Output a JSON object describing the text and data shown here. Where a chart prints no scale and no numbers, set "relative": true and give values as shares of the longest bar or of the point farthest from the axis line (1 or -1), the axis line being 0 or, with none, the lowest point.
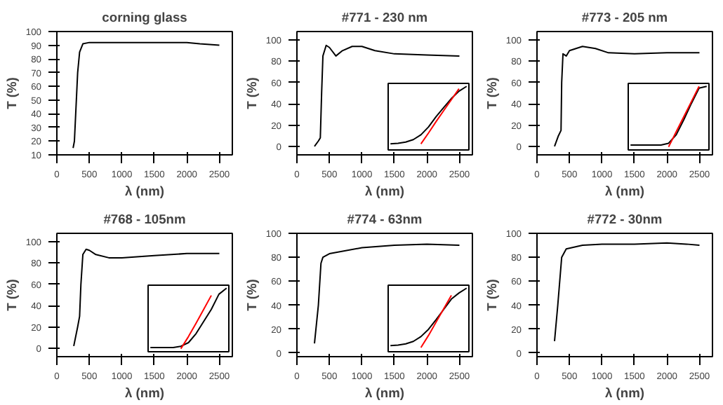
{
  "chart_data": [
    {
      "type": "line",
      "title": "corning glass",
      "xlabel": "λ (nm)",
      "ylabel": "T (%)",
      "xlim": [
        0,
        2700
      ],
      "ylim": [
        10,
        100
      ],
      "xticks": [
        0,
        500,
        1000,
        1500,
        2000,
        2500
      ],
      "yticks": [
        10,
        20,
        30,
        40,
        50,
        60,
        70,
        80,
        90,
        100
      ],
      "grid": false,
      "series": [
        {
          "color": "#000000",
          "x": [
            250,
            270,
            290,
            320,
            350,
            400,
            500,
            1000,
            1500,
            2000,
            2200,
            2500
          ],
          "values": [
            15,
            20,
            40,
            70,
            85,
            91,
            92,
            92,
            92,
            92,
            91,
            90
          ]
        }
      ]
    },
    {
      "type": "line",
      "title": "#771 - 230 nm",
      "xlabel": "λ (nm)",
      "ylabel": "T (%)",
      "xlim": [
        0,
        2700
      ],
      "ylim": [
        -8,
        108
      ],
      "xticks": [
        0,
        500,
        1000,
        1500,
        2000,
        2500
      ],
      "yticks": [
        0,
        20,
        40,
        60,
        80,
        100
      ],
      "grid": false,
      "series": [
        {
          "color": "#000000",
          "x": [
            270,
            330,
            360,
            380,
            400,
            450,
            500,
            600,
            700,
            850,
            1000,
            1200,
            1500,
            2000,
            2500
          ],
          "values": [
            0,
            5,
            8,
            50,
            85,
            95,
            93,
            85,
            90,
            94,
            94,
            90,
            87,
            86,
            85
          ]
        }
      ]
    },
    {
      "type": "line",
      "title": "#773 - 205 nm",
      "xlabel": "λ (nm)",
      "ylabel": "T (%)",
      "xlim": [
        0,
        2700
      ],
      "ylim": [
        -8,
        108
      ],
      "xticks": [
        0,
        500,
        1000,
        1500,
        2000,
        2500
      ],
      "yticks": [
        0,
        20,
        40,
        60,
        80,
        100
      ],
      "grid": false,
      "series": [
        {
          "color": "#000000",
          "x": [
            270,
            330,
            370,
            380,
            400,
            450,
            500,
            700,
            900,
            1100,
            1500,
            2000,
            2500
          ],
          "values": [
            0,
            10,
            15,
            60,
            87,
            85,
            90,
            94,
            92,
            88,
            87,
            88,
            88
          ]
        }
      ]
    },
    {
      "type": "line",
      "title": "#768 - 105nm",
      "xlabel": "λ (nm)",
      "ylabel": "T (%)",
      "xlim": [
        0,
        2700
      ],
      "ylim": [
        -8,
        108
      ],
      "xticks": [
        0,
        500,
        1000,
        1500,
        2000,
        2500
      ],
      "yticks": [
        0,
        20,
        40,
        60,
        80,
        100
      ],
      "grid": false,
      "series": [
        {
          "color": "#000000",
          "x": [
            260,
            320,
            350,
            370,
            400,
            450,
            500,
            600,
            800,
            1000,
            1500,
            2000,
            2500
          ],
          "values": [
            2,
            20,
            30,
            60,
            88,
            93,
            92,
            88,
            85,
            85,
            87,
            89,
            89
          ]
        }
      ]
    },
    {
      "type": "line",
      "title": "#774 - 63nm",
      "xlabel": "λ (nm)",
      "ylabel": "T (%)",
      "xlim": [
        0,
        2700
      ],
      "ylim": [
        -3,
        100
      ],
      "xticks": [
        0,
        500,
        1000,
        1500,
        2000,
        2500
      ],
      "yticks": [
        0,
        20,
        40,
        60,
        80,
        100
      ],
      "grid": false,
      "series": [
        {
          "color": "#000000",
          "x": [
            270,
            330,
            370,
            400,
            500,
            1000,
            1500,
            2000,
            2500
          ],
          "values": [
            8,
            40,
            75,
            80,
            83,
            88,
            90,
            91,
            90
          ]
        }
      ]
    },
    {
      "type": "line",
      "title": "#772 - 30nm",
      "xlabel": "λ (nm)",
      "ylabel": "T (%)",
      "xlim": [
        0,
        2700
      ],
      "ylim": [
        -3,
        100
      ],
      "xticks": [
        0,
        500,
        1000,
        1500,
        2000,
        2500
      ],
      "yticks": [
        0,
        20,
        40,
        60,
        80,
        100
      ],
      "grid": false,
      "series": [
        {
          "color": "#000000",
          "x": [
            270,
            320,
            380,
            450,
            700,
            1000,
            1500,
            2000,
            2300,
            2500
          ],
          "values": [
            10,
            40,
            80,
            87,
            90,
            91,
            91,
            92,
            91,
            90
          ]
        }
      ]
    },
    {
      "type": "line",
      "relative": true,
      "categories": [
        null,
        null,
        null,
        null,
        null,
        null,
        null,
        null,
        null,
        null,
        null
      ],
      "series": [
        {
          "color": "#000000",
          "values": [
            0.05,
            0.06,
            0.08,
            0.12,
            0.2,
            0.33,
            0.5,
            0.65,
            0.8,
            0.92,
            1.0
          ]
        },
        {
          "color": "#ff0000",
          "values": [
            null,
            null,
            null,
            null,
            0.05,
            0.23,
            0.42,
            0.6,
            0.78,
            0.96,
            null
          ]
        }
      ]
    },
    {
      "type": "line",
      "relative": true,
      "categories": [
        null,
        null,
        null,
        null,
        null,
        null,
        null,
        null,
        null,
        null,
        null
      ],
      "series": [
        {
          "color": "#000000",
          "values": [
            0.03,
            0.03,
            0.03,
            0.03,
            0.03,
            0.06,
            0.2,
            0.45,
            0.72,
            0.97,
            1.0
          ]
        },
        {
          "color": "#ff0000",
          "values": [
            null,
            null,
            null,
            null,
            null,
            0.0,
            0.25,
            0.5,
            0.75,
            1.0,
            null
          ]
        }
      ]
    },
    {
      "type": "line",
      "relative": true,
      "categories": [
        null,
        null,
        null,
        null,
        null,
        null,
        null,
        null,
        null,
        null,
        null
      ],
      "series": [
        {
          "color": "#000000",
          "values": [
            0.02,
            0.02,
            0.02,
            0.02,
            0.04,
            0.1,
            0.25,
            0.45,
            0.65,
            0.9,
            1.0
          ]
        },
        {
          "color": "#ff0000",
          "values": [
            null,
            null,
            null,
            null,
            0.0,
            0.2,
            0.42,
            0.65,
            0.88,
            null,
            null
          ]
        }
      ]
    },
    {
      "type": "line",
      "relative": true,
      "categories": [
        null,
        null,
        null,
        null,
        null,
        null,
        null,
        null,
        null,
        null,
        null
      ],
      "series": [
        {
          "color": "#000000",
          "values": [
            0.05,
            0.06,
            0.08,
            0.12,
            0.2,
            0.32,
            0.48,
            0.65,
            0.82,
            0.92,
            1.0
          ]
        },
        {
          "color": "#ff0000",
          "values": [
            null,
            null,
            null,
            null,
            0.02,
            0.22,
            0.44,
            0.66,
            0.88,
            null,
            null
          ]
        }
      ]
    }
  ]
}
